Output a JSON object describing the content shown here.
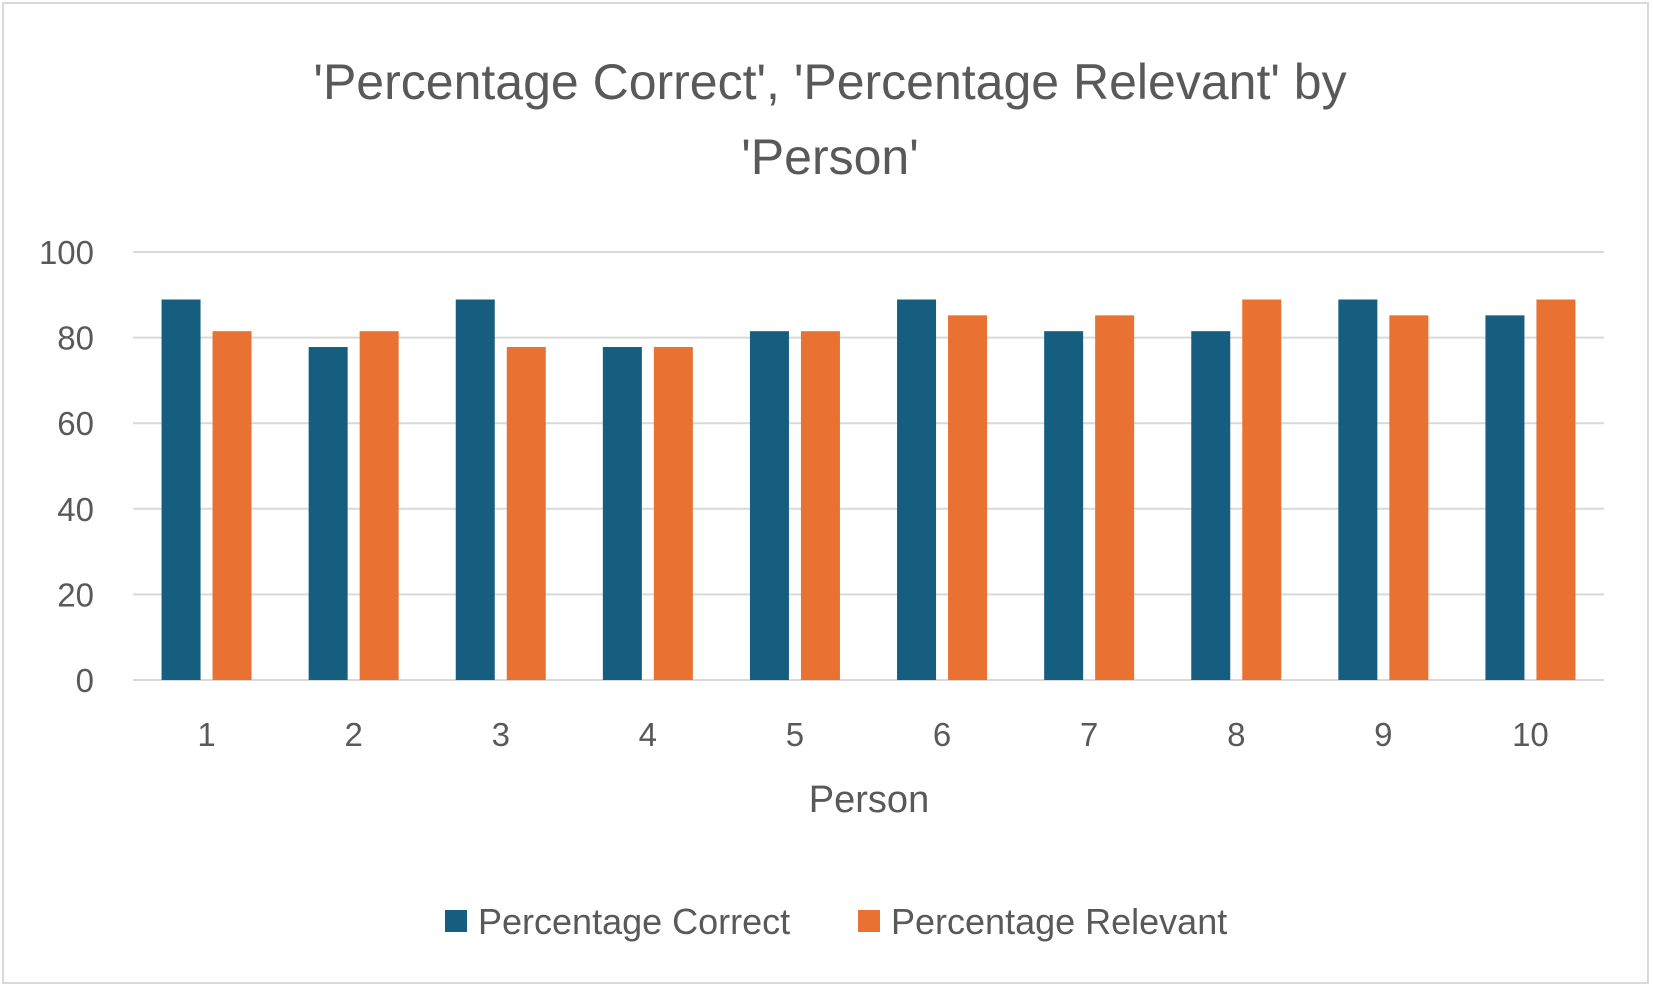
{
  "colors": {
    "series_correct": "#165e80",
    "series_relevant": "#e97132",
    "gridline": "#d9d9d9",
    "text": "#595959"
  },
  "chart_data": {
    "type": "bar",
    "title_line1": "'Percentage Correct', 'Percentage Relevant' by",
    "title_line2": "'Person'",
    "xlabel": "Person",
    "ylabel": "",
    "categories": [
      "1",
      "2",
      "3",
      "4",
      "5",
      "6",
      "7",
      "8",
      "9",
      "10"
    ],
    "series": [
      {
        "name": "Percentage Correct",
        "values": [
          88.9,
          77.8,
          88.9,
          77.8,
          81.5,
          88.9,
          81.5,
          81.5,
          88.9,
          85.2
        ]
      },
      {
        "name": "Percentage Relevant",
        "values": [
          81.5,
          81.5,
          77.8,
          77.8,
          81.5,
          85.2,
          85.2,
          88.9,
          85.2,
          88.9
        ]
      }
    ],
    "ylim": [
      0,
      100
    ],
    "yticks": [
      "0",
      "20",
      "40",
      "60",
      "80",
      "100"
    ],
    "grid": true,
    "legend_position": "bottom"
  }
}
